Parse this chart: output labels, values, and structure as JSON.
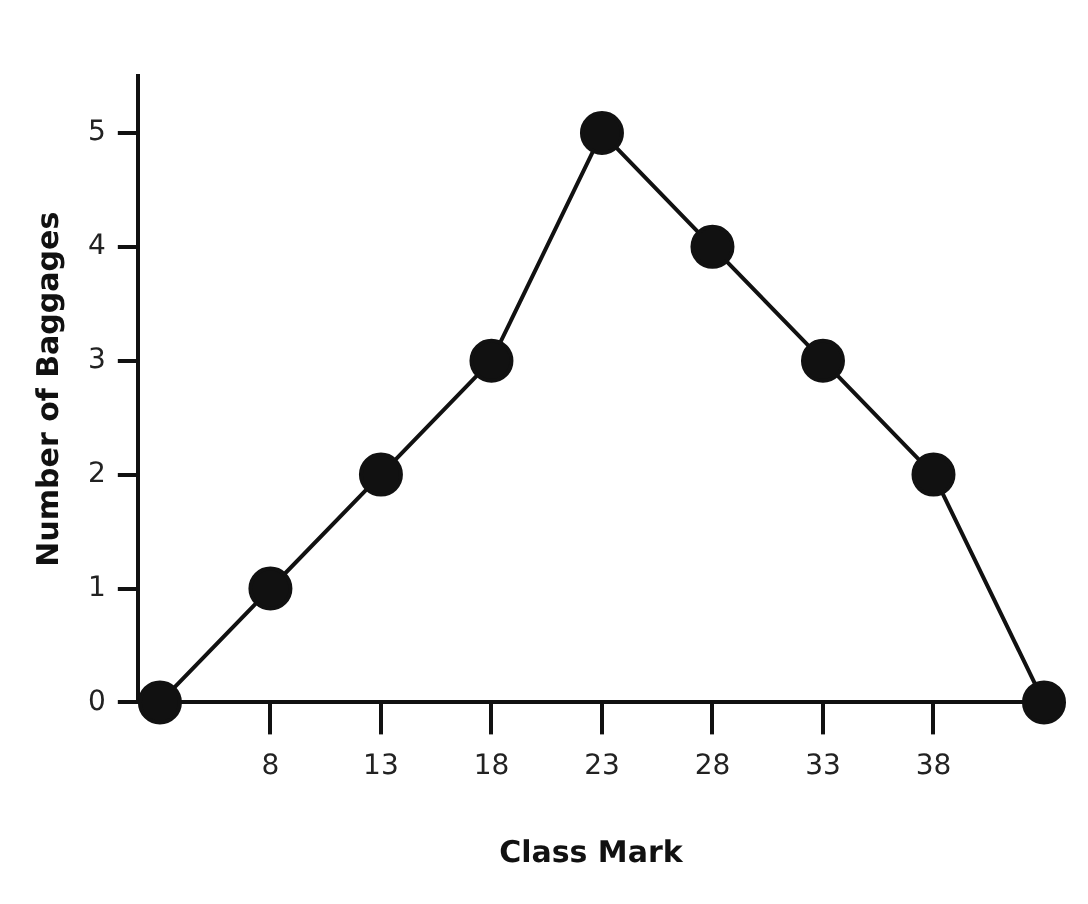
{
  "chart_data": {
    "type": "line",
    "xlabel": "Class Mark",
    "ylabel": "Number of Baggages",
    "x": [
      3,
      8,
      13,
      18,
      23,
      28,
      33,
      38,
      43
    ],
    "series": [
      {
        "color": "#111111",
        "values": [
          0,
          1,
          2,
          3,
          5,
          4,
          3,
          2,
          0
        ]
      }
    ],
    "xlim": [
      2,
      43
    ],
    "xticks": [
      8,
      13,
      18,
      23,
      28,
      33,
      38
    ],
    "ylim": [
      0,
      5.5
    ],
    "yticks": [
      0,
      1,
      2,
      3,
      4,
      5
    ],
    "grid": false,
    "legend": false,
    "marker": "circle",
    "line_style": "solid"
  }
}
